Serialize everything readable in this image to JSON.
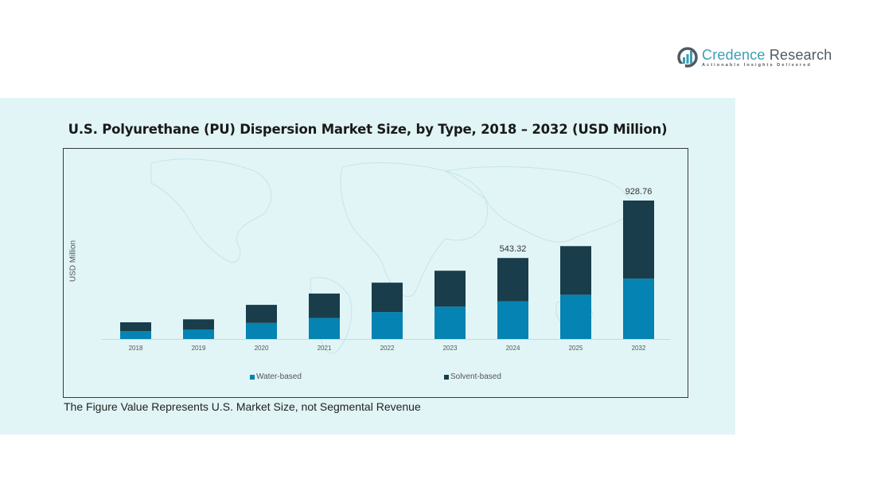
{
  "logo": {
    "name_part1": "Credence",
    "name_part2": "Research",
    "tagline": "Actionable Insights Delivered",
    "icon": "bar-chart-circle-icon"
  },
  "colors": {
    "water_based": "#0583b2",
    "solvent_based": "#193d4a",
    "panel_bg": "#e1f5f6"
  },
  "chart_data": {
    "type": "bar",
    "stacked": true,
    "title": "U.S. Polyurethane (PU) Dispersion Market Size, by Type, 2018 – 2032 (USD Million)",
    "xlabel": "",
    "ylabel": "USD Million",
    "categories": [
      "2018",
      "2019",
      "2020",
      "2021",
      "2022",
      "2023",
      "2024",
      "2025",
      "2032"
    ],
    "series": [
      {
        "name": "Water-based",
        "values": [
          52,
          64,
          108,
          141,
          181,
          217,
          253,
          297,
          405
        ]
      },
      {
        "name": "Solvent-based",
        "values": [
          60,
          68,
          121,
          164,
          197,
          241,
          290.32,
          326,
          523.76
        ]
      }
    ],
    "totals": [
      112,
      132,
      229,
      305,
      378,
      458,
      543.32,
      623,
      928.76
    ],
    "data_labels": [
      {
        "category": "2024",
        "text": "543.32"
      },
      {
        "category": "2032",
        "text": "928.76"
      }
    ],
    "grid": false,
    "legend_position": "bottom",
    "ylim": [
      0,
      928.76
    ]
  },
  "legend": {
    "items": [
      {
        "label": "Water-based"
      },
      {
        "label": "Solvent-based"
      }
    ]
  },
  "footnote": "The Figure Value Represents U.S. Market Size, not Segmental Revenue"
}
